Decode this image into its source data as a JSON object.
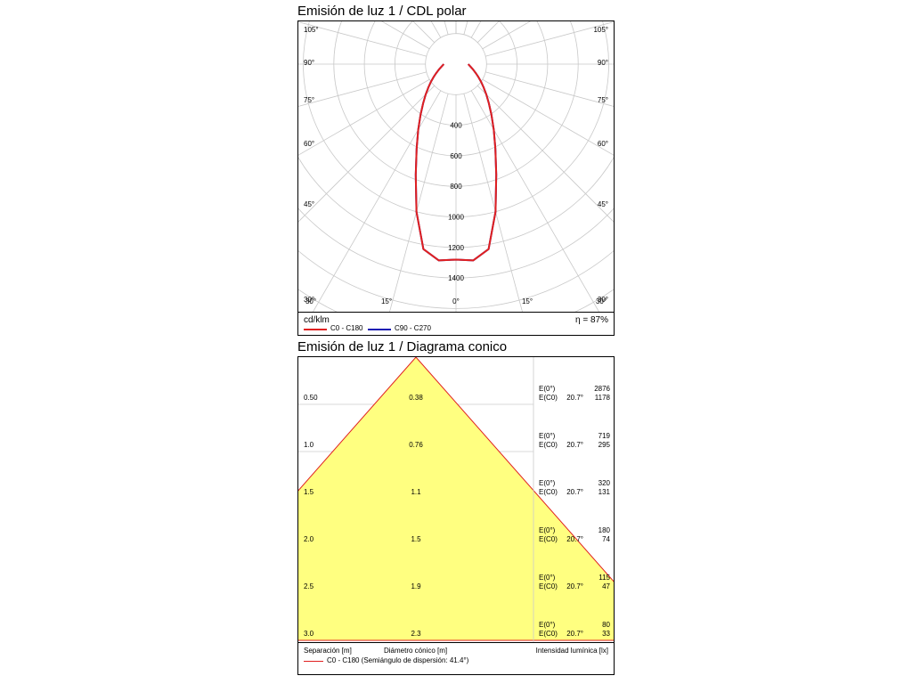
{
  "polar": {
    "title": "Emisión de luz 1 / CDL polar",
    "unit_label": "cd/klm",
    "efficiency": "η = 87%",
    "legend": [
      {
        "label": "C0 - C180",
        "color": "#e02020"
      },
      {
        "label": "C90 - C270",
        "color": "#1a1ab4"
      }
    ],
    "angle_labels_left": [
      "105°",
      "90°",
      "75°",
      "60°",
      "45°",
      "30°"
    ],
    "angle_labels_right": [
      "105°",
      "90°",
      "75°",
      "60°",
      "45°",
      "30°"
    ],
    "bottom_angle_labels": [
      "30°",
      "15°",
      "0°",
      "15°",
      "30°"
    ],
    "radial_labels": [
      "400",
      "600",
      "800",
      "1000",
      "1200",
      "1400"
    ]
  },
  "cone": {
    "title": "Emisión de luz 1 / Diagrama conico",
    "footer_labels": {
      "separation": "Separación [m]",
      "diameter": "Diámetro cónico [m]",
      "intensity": "Intensidad lumínica [lx]"
    },
    "legend": {
      "label": "C0 - C180 (Semiángulo de dispersión: 41.4°)",
      "color": "#e02020"
    },
    "fill_color": "#ffff80",
    "rows": [
      {
        "separation": "0.50",
        "diameter": "0.38",
        "e0_label": "E(0°)",
        "e0": "2876",
        "ec_label": "E(C0)",
        "angle": "20.7°",
        "ec": "1178"
      },
      {
        "separation": "1.0",
        "diameter": "0.76",
        "e0_label": "E(0°)",
        "e0": "719",
        "ec_label": "E(C0)",
        "angle": "20.7°",
        "ec": "295"
      },
      {
        "separation": "1.5",
        "diameter": "1.1",
        "e0_label": "E(0°)",
        "e0": "320",
        "ec_label": "E(C0)",
        "angle": "20.7°",
        "ec": "131"
      },
      {
        "separation": "2.0",
        "diameter": "1.5",
        "e0_label": "E(0°)",
        "e0": "180",
        "ec_label": "E(C0)",
        "angle": "20.7°",
        "ec": "74"
      },
      {
        "separation": "2.5",
        "diameter": "1.9",
        "e0_label": "E(0°)",
        "e0": "115",
        "ec_label": "E(C0)",
        "angle": "20.7°",
        "ec": "47"
      },
      {
        "separation": "3.0",
        "diameter": "2.3",
        "e0_label": "E(0°)",
        "e0": "80",
        "ec_label": "E(C0)",
        "angle": "20.7°",
        "ec": "33"
      }
    ]
  },
  "chart_data": [
    {
      "type": "polar",
      "title": "Emisión de luz 1 / CDL polar",
      "unit": "cd/klm",
      "efficiency": "η = 87%",
      "radial_range": [
        0,
        1400
      ],
      "series": [
        {
          "name": "C90 - C270",
          "color": "#1a1ab4",
          "angles_deg": [
            0,
            5,
            10,
            15,
            20,
            25,
            30,
            35,
            40,
            45,
            50,
            55,
            60,
            65,
            70,
            75,
            80,
            85,
            90
          ],
          "values": [
            1280,
            1290,
            1230,
            1000,
            770,
            610,
            495,
            405,
            335,
            280,
            235,
            200,
            170,
            145,
            125,
            110,
            97,
            87,
            80
          ]
        },
        {
          "name": "C0 - C180",
          "color": "#e02020",
          "angles_deg": [
            0,
            5,
            10,
            15,
            20,
            25,
            30,
            35,
            40,
            45,
            50,
            55,
            60,
            65,
            70,
            75,
            80,
            85,
            90
          ],
          "values": [
            1280,
            1290,
            1230,
            1000,
            770,
            610,
            495,
            405,
            335,
            280,
            235,
            200,
            170,
            145,
            125,
            110,
            97,
            87,
            80
          ]
        }
      ]
    },
    {
      "type": "table",
      "title": "Emisión de luz 1 / Diagrama conico",
      "half_angle_deg": 41.4,
      "columns": [
        "Separación [m]",
        "Diámetro cónico [m]",
        "E(0°)",
        "E(C0)",
        "Intensidad lumínica [lx]"
      ],
      "separation": [
        0.5,
        1.0,
        1.5,
        2.0,
        2.5,
        3.0
      ],
      "diameter": [
        0.38,
        0.76,
        1.1,
        1.5,
        1.9,
        2.3
      ],
      "e0": [
        2876,
        719,
        320,
        180,
        115,
        80
      ],
      "ec0": [
        1178,
        295,
        131,
        74,
        47,
        33
      ]
    }
  ]
}
